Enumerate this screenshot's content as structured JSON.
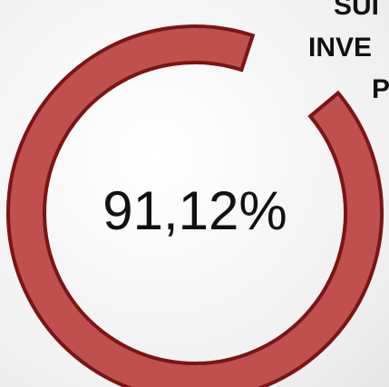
{
  "chart_data": {
    "type": "donut",
    "values": [
      91.12
    ],
    "value_labels": [
      "91,12%"
    ],
    "ylim": [
      0,
      100
    ],
    "color": "#c0504d",
    "edge_color": "#7b1414",
    "side_text": [
      "SUI",
      "INVE",
      "P"
    ]
  }
}
